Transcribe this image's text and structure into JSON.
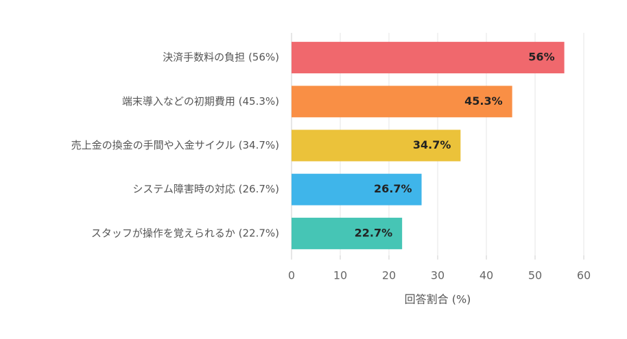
{
  "chart_data": {
    "type": "hbar",
    "categories": [
      "決済手数料の負担 (56%)",
      "端末導入などの初期費用 (45.3%)",
      "売上金の換金の手間や入金サイクル (34.7%)",
      "システム障害時の対応 (26.7%)",
      "スタッフが操作を覚えられるか (22.7%)"
    ],
    "values": [
      56,
      45.3,
      34.7,
      26.7,
      22.7
    ],
    "value_labels": [
      "56%",
      "45.3%",
      "34.7%",
      "26.7%",
      "22.7%"
    ],
    "colors": [
      "#f0686d",
      "#f98f45",
      "#ebc23a",
      "#3fb5ea",
      "#46c5b5"
    ],
    "xlabel": "回答割合 (%)",
    "xlim": [
      0,
      60
    ],
    "xticks": [
      0,
      10,
      20,
      30,
      40,
      50,
      60
    ],
    "grid": true
  }
}
